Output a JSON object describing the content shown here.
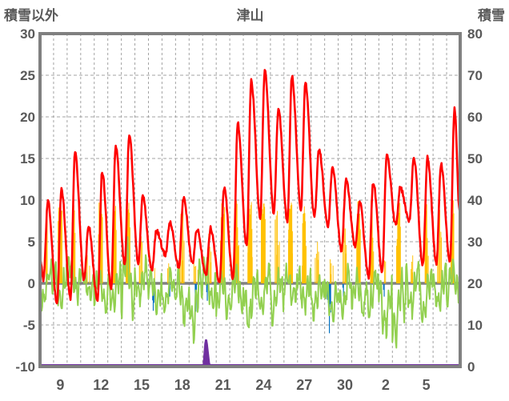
{
  "header": {
    "left_axis_title": "積雪以外",
    "chart_title": "津山",
    "right_axis_title": "積雪"
  },
  "chart_data": {
    "type": "composite",
    "title": "津山",
    "station": "津山",
    "left_axis": {
      "label": "積雪以外",
      "min": -10,
      "max": 30,
      "step": 5,
      "tick_labels": [
        "30",
        "25",
        "20",
        "15",
        "10",
        "5",
        "0",
        "-5",
        "-10"
      ]
    },
    "right_axis": {
      "label": "積雪",
      "min": 0,
      "max": 80,
      "step": 10,
      "tick_labels": [
        "80",
        "70",
        "60",
        "50",
        "40",
        "30",
        "20",
        "10",
        "0"
      ]
    },
    "x_axis": {
      "days_total": 31,
      "tick_labels": [
        "9",
        "12",
        "15",
        "18",
        "21",
        "24",
        "27",
        "30",
        "2",
        "5"
      ],
      "tick_day_indices": [
        1,
        4,
        7,
        10,
        13,
        16,
        19,
        22,
        25,
        28
      ]
    },
    "grid": {
      "horizontal": true,
      "vertical": true,
      "style": "dashed"
    },
    "series": {
      "red_line": {
        "type": "line",
        "daily_max": [
          9.8,
          11.2,
          15.6,
          6.8,
          13.4,
          16.4,
          17.9,
          10.4,
          6.3,
          7.3,
          10.3,
          6.5,
          6.6,
          11.4,
          19.3,
          24.3,
          25.5,
          20.9,
          24.8,
          24.0,
          16.0,
          13.9,
          12.4,
          9.7,
          12.1,
          15.5,
          11.5,
          15.0,
          15.1,
          14.3,
          20.9
        ],
        "daily_min": [
          0.5,
          -2.3,
          -1.8,
          0.5,
          -2.0,
          -0.5,
          2.3,
          2.5,
          1.5,
          3.5,
          2.0,
          2.5,
          1.0,
          0.2,
          0.5,
          4.5,
          8.0,
          8.5,
          7.5,
          9.0,
          8.0,
          7.0,
          4.0,
          4.5,
          0.8,
          1.5,
          7.0,
          7.5,
          2.2,
          2.5,
          2.6
        ],
        "start_value": 3.0,
        "end_value": 8.6
      },
      "green_line": {
        "type": "line",
        "daily_min": [
          -3,
          -3,
          -2.5,
          -2,
          -3.3,
          -3.5,
          -4.5,
          -2.5,
          -3.5,
          -3.5,
          -5.2,
          -7,
          -3.5,
          -4.5,
          -3.5,
          -5.8,
          -4,
          -4.8,
          -3,
          -3.5,
          -4.2,
          -5,
          -4,
          -4.5,
          -3.8,
          -6.3,
          -7.8,
          -4,
          -5.5,
          -3.5,
          -2.5
        ],
        "daily_max": [
          2.5,
          2.5,
          3.8,
          2,
          1.5,
          2.2,
          5.8,
          3,
          2,
          1.5,
          2,
          2.5,
          3,
          1.5,
          2,
          1.5,
          2,
          1.5,
          2,
          2,
          1,
          1.5,
          2,
          1.5,
          2,
          1,
          1.5,
          2.5,
          2,
          2,
          2.5
        ]
      },
      "orange_bars": {
        "type": "bar-up",
        "daily_peak": [
          10,
          10,
          10,
          4,
          10,
          10,
          10,
          6,
          2,
          3,
          9,
          4,
          7,
          10,
          10,
          10,
          10,
          9,
          10,
          10,
          5,
          4,
          8,
          10,
          10,
          3,
          10,
          4,
          10,
          9,
          10
        ],
        "daily_hours": [
          3,
          8,
          6,
          2,
          8,
          7,
          8,
          3,
          1,
          2,
          5,
          2,
          3,
          7,
          6,
          8,
          8,
          4,
          8,
          6,
          3,
          2,
          4,
          6,
          5,
          2,
          7,
          2,
          5,
          4,
          4
        ]
      },
      "blue_bars": {
        "type": "bar-down",
        "daily_max": [
          0,
          0,
          0,
          0,
          0,
          0,
          0,
          0,
          3.2,
          1.5,
          0,
          3.3,
          2.0,
          0,
          0,
          0,
          0,
          0,
          0,
          0,
          0,
          5.9,
          1.5,
          0,
          0,
          1.5,
          0,
          0,
          0,
          0,
          0
        ]
      },
      "purple_line": {
        "type": "area",
        "axis": "right",
        "daily_peak_cm": [
          0,
          0,
          0,
          0,
          0,
          0,
          0,
          0,
          0,
          0,
          0,
          0,
          6,
          0,
          0,
          0,
          0,
          0,
          0,
          0,
          0,
          0,
          0,
          0,
          0,
          0,
          0,
          0,
          0,
          0,
          0
        ]
      }
    },
    "colors": {
      "red": "#FF0000",
      "green": "#92D050",
      "orange": "#FFC000",
      "blue": "#0070C0",
      "purple": "#7030A0",
      "border": "#808080",
      "zero_line": "#808080",
      "grid": "#A3A3A3",
      "text": "#595959",
      "background": "#FFFFFF"
    }
  }
}
